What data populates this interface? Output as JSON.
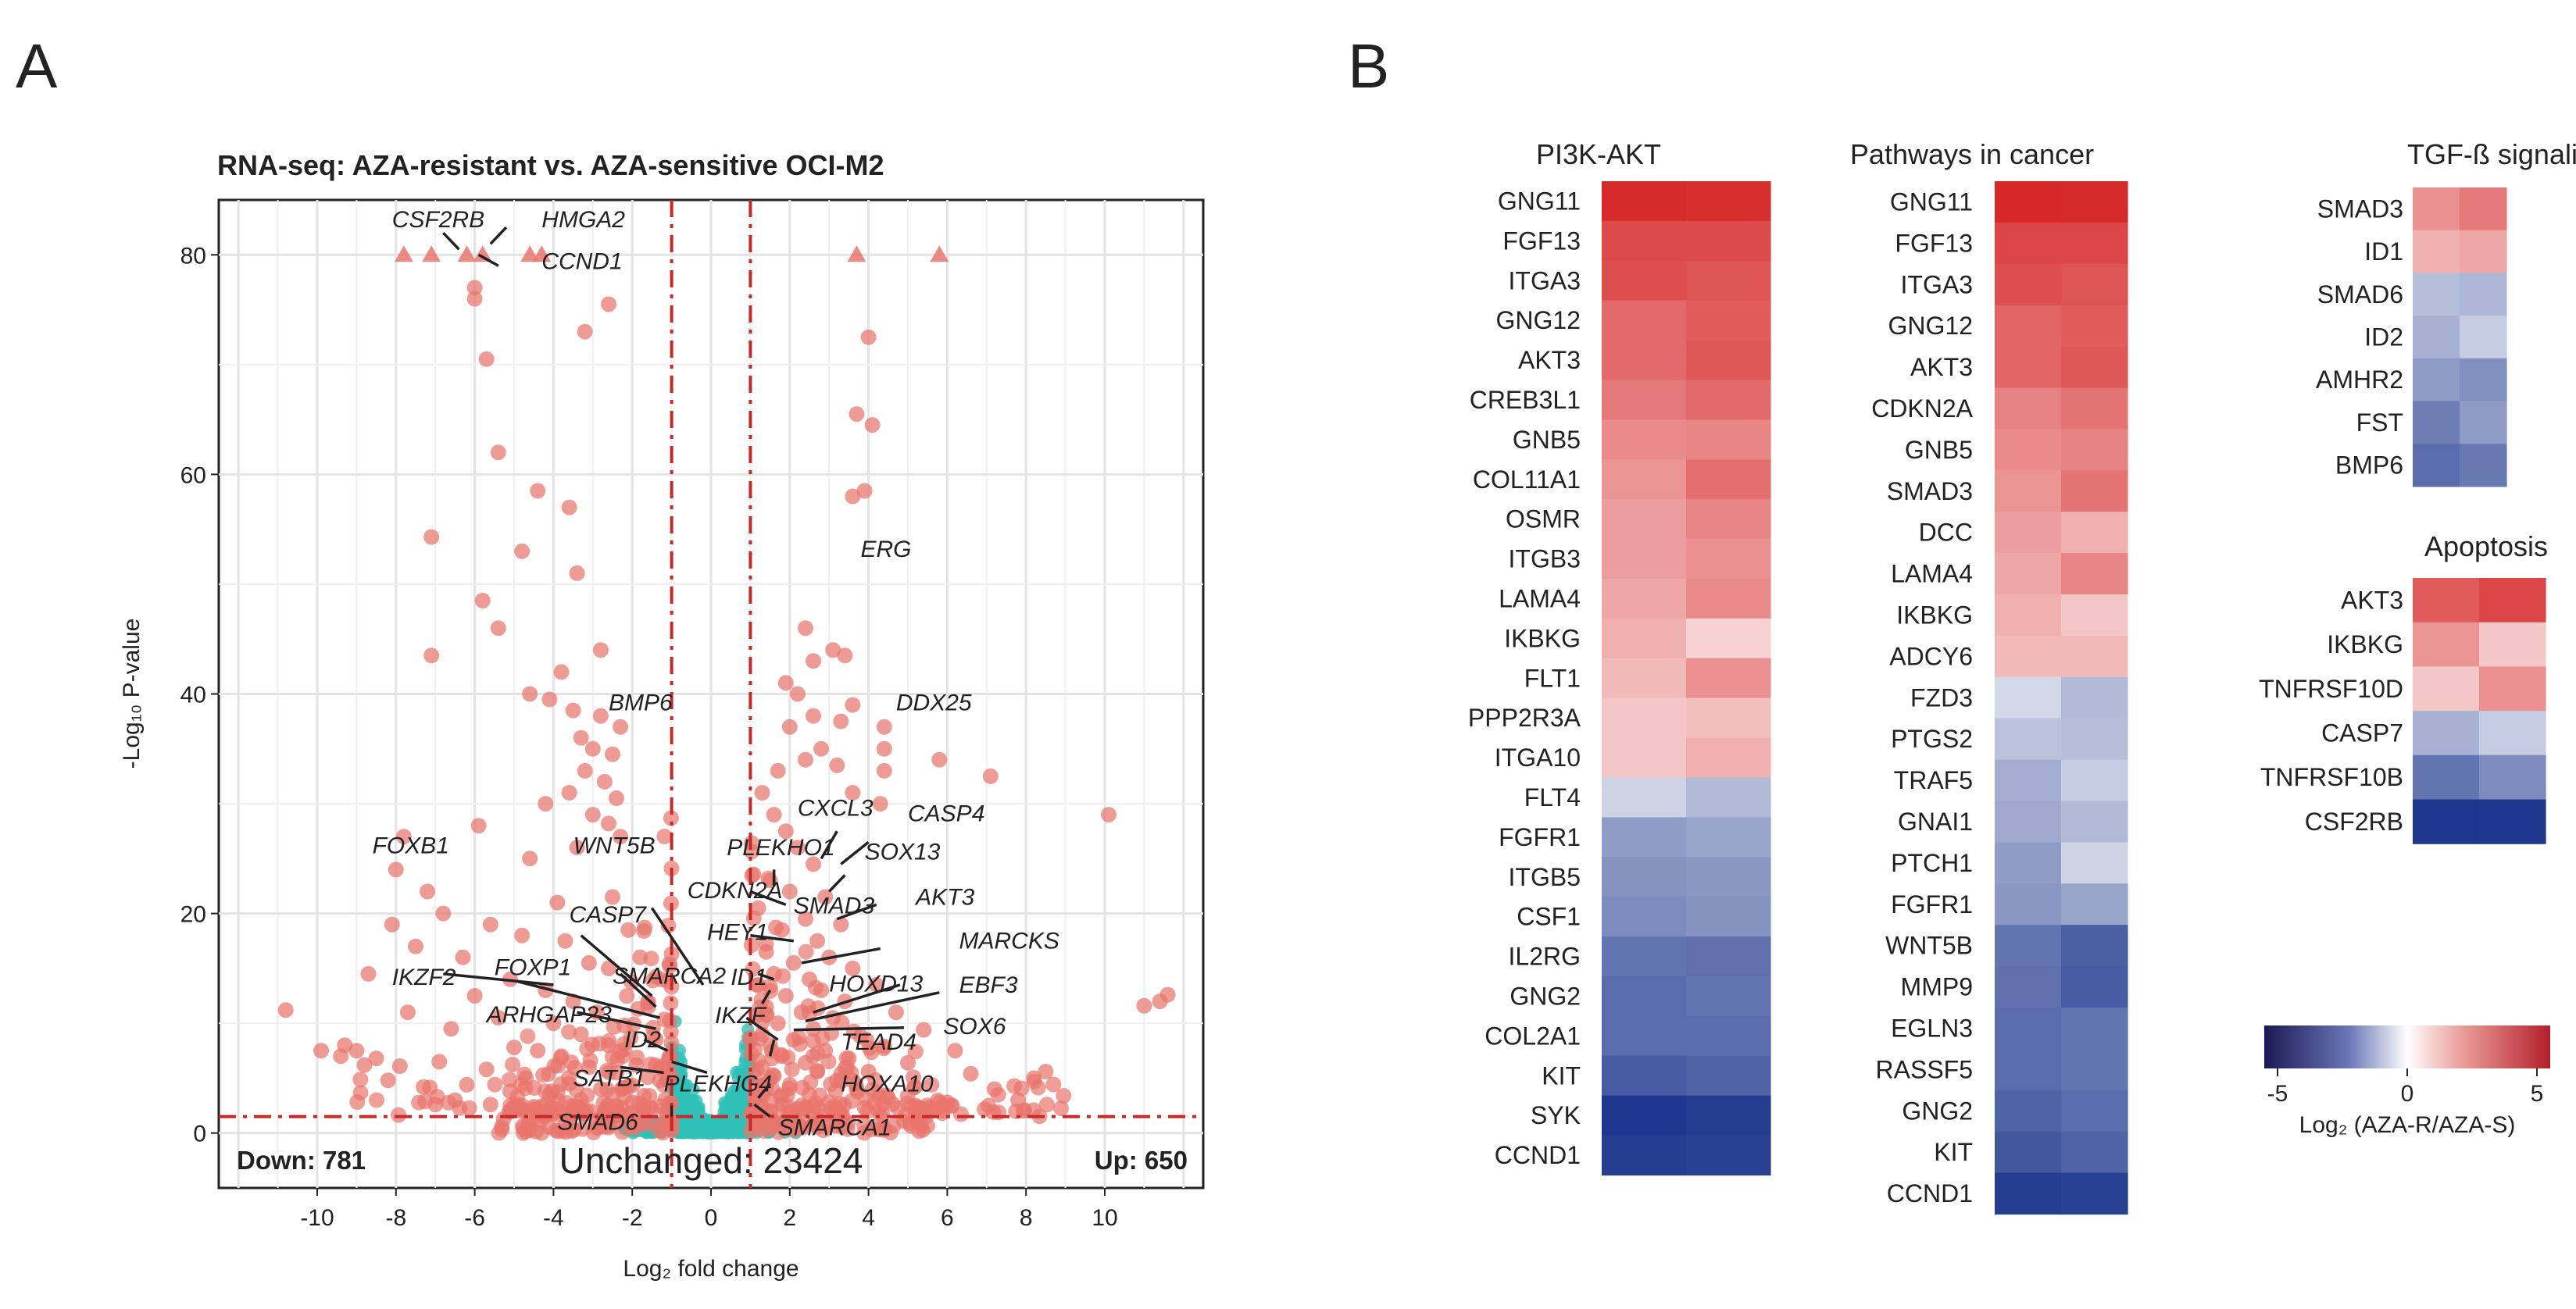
{
  "panel_labels": [
    "A",
    "B"
  ],
  "colors": {
    "up_down": "#e8756c",
    "unchanged": "#2ec1b8",
    "cutoff_line": "#c62828",
    "down_text": "#2747a0",
    "up_text": "#c0392b",
    "heat_low": "#1c1a55",
    "heat_mid": "#ffffff",
    "heat_high": "#b3202a"
  },
  "chart_data": [
    {
      "type": "scatter",
      "subtype": "volcano",
      "title": "RNA-seq: AZA-resistant vs. AZA-sensitive OCI-M2",
      "xlabel": "Log₂ fold change",
      "ylabel": "-Log₁₀ P-value",
      "xlim": [
        -12.5,
        12.5
      ],
      "ylim": [
        -5,
        85
      ],
      "xticks": [
        -10,
        -8,
        -6,
        -4,
        -2,
        0,
        2,
        4,
        6,
        8,
        10
      ],
      "yticks": [
        0,
        20,
        40,
        60,
        80
      ],
      "cutoffs": {
        "fold_change": [
          -1,
          1
        ],
        "pvalue": 1.5
      },
      "counts": {
        "down": "Down: 781",
        "unchanged": "Unchanged: 23424",
        "up": "Up: 650"
      },
      "capped_points": [
        [
          -7.8,
          80
        ],
        [
          -7.1,
          80
        ],
        [
          -6.2,
          80
        ],
        [
          -5.8,
          80
        ],
        [
          -4.6,
          80
        ],
        [
          -4.3,
          80
        ],
        [
          3.7,
          80
        ],
        [
          5.8,
          80
        ]
      ],
      "points": [
        [
          -6.0,
          77
        ],
        [
          -6.0,
          76
        ],
        [
          -2.6,
          75.5
        ],
        [
          -3.2,
          73
        ],
        [
          -5.7,
          70.5
        ],
        [
          -5.4,
          62
        ],
        [
          -4.4,
          58.5
        ],
        [
          -3.6,
          57
        ],
        [
          -7.1,
          54.3
        ],
        [
          -4.8,
          53
        ],
        [
          -3.4,
          51
        ],
        [
          -5.8,
          48.5
        ],
        [
          -5.4,
          46
        ],
        [
          -7.1,
          43.5
        ],
        [
          -2.8,
          44
        ],
        [
          -3.8,
          42
        ],
        [
          -4.6,
          40
        ],
        [
          -4.1,
          39.5
        ],
        [
          -3.5,
          38.5
        ],
        [
          -2.8,
          38
        ],
        [
          -2.3,
          37
        ],
        [
          -3.3,
          36
        ],
        [
          -3.0,
          35
        ],
        [
          -2.5,
          34.5
        ],
        [
          -3.2,
          33
        ],
        [
          -2.7,
          32
        ],
        [
          -3.6,
          31
        ],
        [
          -2.4,
          30.5
        ],
        [
          -4.2,
          30
        ],
        [
          -3.0,
          29
        ],
        [
          -2.6,
          28.2
        ],
        [
          -5.9,
          28
        ],
        [
          -2.3,
          27
        ],
        [
          -3.4,
          26
        ],
        [
          -4.6,
          25
        ],
        [
          -7.8,
          27
        ],
        [
          -8.0,
          24
        ],
        [
          -7.2,
          22
        ],
        [
          -3.9,
          21
        ],
        [
          -2.5,
          21.5
        ],
        [
          -6.8,
          20
        ],
        [
          -5.6,
          19
        ],
        [
          -8.1,
          19
        ],
        [
          -4.8,
          18
        ],
        [
          -2.1,
          18.5
        ],
        [
          -3.7,
          17.5
        ],
        [
          -7.5,
          17
        ],
        [
          -1.8,
          16
        ],
        [
          -6.3,
          16
        ],
        [
          -3.1,
          15.5
        ],
        [
          -8.7,
          14.5
        ],
        [
          -2.6,
          15
        ],
        [
          -5.1,
          14
        ],
        [
          -4.2,
          13
        ],
        [
          -6.0,
          12.5
        ],
        [
          -3.5,
          12
        ],
        [
          -1.6,
          11.5
        ],
        [
          -2.9,
          11
        ],
        [
          -7.7,
          11
        ],
        [
          -5.4,
          10.5
        ],
        [
          -4.0,
          10
        ],
        [
          -2.2,
          9.8
        ],
        [
          -6.6,
          9.5
        ],
        [
          -3.3,
          9
        ],
        [
          -1.4,
          8.5
        ],
        [
          -9.3,
          8
        ],
        [
          -2.6,
          8
        ],
        [
          -5.0,
          7.8
        ],
        [
          -4.4,
          7.5
        ],
        [
          -3.8,
          7
        ],
        [
          -9.0,
          7.5
        ],
        [
          -8.5,
          6.8
        ],
        [
          -6.9,
          6.5
        ],
        [
          -1.9,
          6.2
        ],
        [
          -3.1,
          6
        ],
        [
          -7.9,
          6.1
        ],
        [
          -5.7,
          5.8
        ],
        [
          -2.4,
          5.5
        ],
        [
          -4.7,
          5
        ],
        [
          -1.3,
          4.8
        ],
        [
          -3.6,
          4.5
        ],
        [
          -6.2,
          4.4
        ],
        [
          -2.8,
          4
        ],
        [
          -8.2,
          4.8
        ],
        [
          -5.1,
          3.8
        ],
        [
          -4.1,
          3.5
        ],
        [
          -1.7,
          3.4
        ],
        [
          -7.3,
          4.2
        ],
        [
          -3.3,
          3
        ],
        [
          -2.0,
          2.8
        ],
        [
          -6.5,
          3
        ],
        [
          -5.6,
          2.6
        ],
        [
          -4.5,
          2.4
        ],
        [
          -1.5,
          2.2
        ],
        [
          -3.9,
          2.2
        ],
        [
          -2.7,
          2
        ],
        [
          -7.0,
          2.6
        ],
        [
          -10.8,
          11.2
        ],
        [
          -9.9,
          7.5
        ],
        [
          -9.4,
          7
        ],
        [
          -8.8,
          6.2
        ],
        [
          1.3,
          31
        ],
        [
          1.6,
          29
        ],
        [
          1.9,
          27.5
        ],
        [
          2.2,
          26
        ],
        [
          2.6,
          24.5
        ],
        [
          1.5,
          23
        ],
        [
          2.0,
          22
        ],
        [
          2.9,
          21.5
        ],
        [
          1.2,
          20.5
        ],
        [
          2.4,
          19.5
        ],
        [
          3.3,
          19
        ],
        [
          1.8,
          18.5
        ],
        [
          2.7,
          17.5
        ],
        [
          1.4,
          16.5
        ],
        [
          3.0,
          16
        ],
        [
          2.1,
          15.5
        ],
        [
          3.6,
          15
        ],
        [
          1.6,
          14.5
        ],
        [
          2.5,
          14
        ],
        [
          1.2,
          13.5
        ],
        [
          4.2,
          13.5
        ],
        [
          2.8,
          13
        ],
        [
          1.9,
          12.5
        ],
        [
          3.4,
          12
        ],
        [
          1.4,
          11.5
        ],
        [
          2.3,
          11
        ],
        [
          4.7,
          11
        ],
        [
          3.1,
          10.5
        ],
        [
          1.7,
          10
        ],
        [
          2.6,
          9.5
        ],
        [
          5.4,
          9.4
        ],
        [
          1.3,
          9
        ],
        [
          3.8,
          8.8
        ],
        [
          2.1,
          8.5
        ],
        [
          1.5,
          8
        ],
        [
          4.4,
          7.9
        ],
        [
          2.9,
          7.5
        ],
        [
          6.2,
          7.5
        ],
        [
          1.8,
          7
        ],
        [
          3.5,
          6.8
        ],
        [
          2.4,
          6.4
        ],
        [
          5.0,
          6.4
        ],
        [
          1.3,
          6
        ],
        [
          2.7,
          5.6
        ],
        [
          4.0,
          5.6
        ],
        [
          1.6,
          5.2
        ],
        [
          6.6,
          5.4
        ],
        [
          3.2,
          4.8
        ],
        [
          2.0,
          4.4
        ],
        [
          5.6,
          4.4
        ],
        [
          1.4,
          4
        ],
        [
          3.7,
          4
        ],
        [
          2.5,
          3.5
        ],
        [
          7.2,
          4
        ],
        [
          1.2,
          3.2
        ],
        [
          4.5,
          3.2
        ],
        [
          3.0,
          2.8
        ],
        [
          1.8,
          2.6
        ],
        [
          6.0,
          2.8
        ],
        [
          2.2,
          2.2
        ],
        [
          5.2,
          2.5
        ],
        [
          3.9,
          2.3
        ],
        [
          1.5,
          2
        ],
        [
          7.8,
          3
        ],
        [
          8.5,
          5.6
        ],
        [
          8.2,
          5
        ],
        [
          4.0,
          72.5
        ],
        [
          3.7,
          65.5
        ],
        [
          4.1,
          64.5
        ],
        [
          3.6,
          58
        ],
        [
          3.9,
          58.5
        ],
        [
          4.4,
          37
        ],
        [
          4.4,
          35
        ],
        [
          4.4,
          33
        ],
        [
          3.6,
          31
        ],
        [
          4.3,
          30
        ],
        [
          5.8,
          34
        ],
        [
          7.1,
          32.5
        ],
        [
          10.1,
          29
        ],
        [
          2.4,
          46
        ],
        [
          2.6,
          43
        ],
        [
          3.1,
          44
        ],
        [
          3.4,
          43.5
        ],
        [
          2.2,
          40
        ],
        [
          2.6,
          38
        ],
        [
          3.3,
          37.5
        ],
        [
          2.8,
          35
        ],
        [
          2.4,
          34
        ],
        [
          3.2,
          33.5
        ],
        [
          1.7,
          33
        ],
        [
          11.6,
          12.6
        ],
        [
          11.4,
          12
        ],
        [
          11.0,
          11.6
        ],
        [
          2.0,
          37
        ],
        [
          3.6,
          39
        ],
        [
          1.9,
          41
        ]
      ],
      "unchanged_region": {
        "x": [
          -1,
          1
        ],
        "y": [
          0,
          13
        ]
      },
      "labels": [
        {
          "text": "CSF2RB",
          "x": -8.1,
          "y": 82.5
        },
        {
          "text": "HMGA2",
          "x": -4.3,
          "y": 82.5
        },
        {
          "text": "CCND1",
          "x": -4.3,
          "y": 78.7
        },
        {
          "text": "ERG",
          "x": 3.8,
          "y": 52.5
        },
        {
          "text": "BMP6",
          "x": -2.6,
          "y": 38.5
        },
        {
          "text": "DDX25",
          "x": 4.7,
          "y": 38.5
        },
        {
          "text": "FOXB1",
          "x": -8.6,
          "y": 25.5
        },
        {
          "text": "WNT5B",
          "x": -3.5,
          "y": 25.5
        },
        {
          "text": "PLEKHO1",
          "x": 0.4,
          "y": 25.3
        },
        {
          "text": "CXCL3",
          "x": 2.2,
          "y": 28.9
        },
        {
          "text": "CASP4",
          "x": 5.0,
          "y": 28.4
        },
        {
          "text": "SOX13",
          "x": 3.9,
          "y": 24.9
        },
        {
          "text": "CDKN2A",
          "x": -0.6,
          "y": 21.4
        },
        {
          "text": "AKT3",
          "x": 5.2,
          "y": 20.8
        },
        {
          "text": "SMAD3",
          "x": 2.1,
          "y": 20.0
        },
        {
          "text": "CASP7",
          "x": -3.6,
          "y": 19.2
        },
        {
          "text": "HEY1",
          "x": -0.1,
          "y": 17.6
        },
        {
          "text": "MARCKS",
          "x": 6.3,
          "y": 16.8
        },
        {
          "text": "IKZF2",
          "x": -8.1,
          "y": 13.5
        },
        {
          "text": "FOXP1",
          "x": -5.5,
          "y": 14.4
        },
        {
          "text": "SMARCA2",
          "x": -2.5,
          "y": 13.6
        },
        {
          "text": "ID1",
          "x": 0.5,
          "y": 13.5
        },
        {
          "text": "HOXD13",
          "x": 3.0,
          "y": 12.9
        },
        {
          "text": "EBF3",
          "x": 6.3,
          "y": 12.8
        },
        {
          "text": "ARHGAP23",
          "x": -5.7,
          "y": 10.1
        },
        {
          "text": "IKZF",
          "x": 0.1,
          "y": 10.0
        },
        {
          "text": "SOX6",
          "x": 5.9,
          "y": 9.0
        },
        {
          "text": "ID2",
          "x": -2.2,
          "y": 7.8
        },
        {
          "text": "TEAD4",
          "x": 3.3,
          "y": 7.6
        },
        {
          "text": "SATB1",
          "x": -3.5,
          "y": 4.3
        },
        {
          "text": "PLEKHG4",
          "x": -1.2,
          "y": 3.8
        },
        {
          "text": "HOXA10",
          "x": 3.3,
          "y": 3.8
        },
        {
          "text": "SMAD6",
          "x": -3.9,
          "y": 0.3
        },
        {
          "text": "SMARCA1",
          "x": 1.7,
          "y": -0.2
        }
      ]
    },
    {
      "type": "heatmap",
      "title": "PI3K-AKT",
      "rows": [
        "GNG11",
        "FGF13",
        "ITGA3",
        "GNG12",
        "AKT3",
        "CREB3L1",
        "GNB5",
        "COL11A1",
        "OSMR",
        "ITGB3",
        "LAMA4",
        "IKBKG",
        "FLT1",
        "PPP2R3A",
        "ITGA10",
        "FLT4",
        "FGFR1",
        "ITGB5",
        "CSF1",
        "IL2RG",
        "GNG2",
        "COL2A1",
        "KIT",
        "SYK",
        "CCND1"
      ],
      "values": [
        [
          4.6,
          4.5
        ],
        [
          3.9,
          3.9
        ],
        [
          3.8,
          3.7
        ],
        [
          3.2,
          3.5
        ],
        [
          3.2,
          3.6
        ],
        [
          2.9,
          3.2
        ],
        [
          2.5,
          2.6
        ],
        [
          2.3,
          3.1
        ],
        [
          2.1,
          2.6
        ],
        [
          2.1,
          2.4
        ],
        [
          1.9,
          2.5
        ],
        [
          1.7,
          1.0
        ],
        [
          1.5,
          2.4
        ],
        [
          1.2,
          1.4
        ],
        [
          1.2,
          1.7
        ],
        [
          -1.0,
          -1.6
        ],
        [
          -2.3,
          -2.1
        ],
        [
          -2.5,
          -2.4
        ],
        [
          -2.7,
          -2.5
        ],
        [
          -3.2,
          -3.3
        ],
        [
          -3.4,
          -3.2
        ],
        [
          -3.4,
          -3.4
        ],
        [
          -3.8,
          -3.6
        ],
        [
          -4.6,
          -4.5
        ],
        [
          -4.5,
          -4.4
        ]
      ]
    },
    {
      "type": "heatmap",
      "title": "Pathways in cancer",
      "rows": [
        "GNG11",
        "FGF13",
        "ITGA3",
        "GNG12",
        "AKT3",
        "CDKN2A",
        "GNB5",
        "SMAD3",
        "DCC",
        "LAMA4",
        "IKBKG",
        "ADCY6",
        "FZD3",
        "PTGS2",
        "TRAF5",
        "GNAI1",
        "PTCH1",
        "FGFR1",
        "WNT5B",
        "MMP9",
        "EGLN3",
        "RASSF5",
        "GNG2",
        "KIT",
        "CCND1"
      ],
      "values": [
        [
          4.7,
          4.6
        ],
        [
          4.0,
          4.0
        ],
        [
          3.8,
          3.7
        ],
        [
          3.3,
          3.5
        ],
        [
          3.3,
          3.6
        ],
        [
          2.7,
          3.0
        ],
        [
          2.5,
          2.7
        ],
        [
          2.3,
          3.0
        ],
        [
          2.1,
          1.7
        ],
        [
          1.9,
          2.6
        ],
        [
          1.7,
          1.2
        ],
        [
          1.5,
          1.5
        ],
        [
          -0.9,
          -1.6
        ],
        [
          -1.4,
          -1.5
        ],
        [
          -1.9,
          -1.2
        ],
        [
          -2.0,
          -1.6
        ],
        [
          -2.3,
          -1.0
        ],
        [
          -2.4,
          -2.1
        ],
        [
          -3.2,
          -3.7
        ],
        [
          -3.3,
          -3.8
        ],
        [
          -3.4,
          -3.2
        ],
        [
          -3.4,
          -3.2
        ],
        [
          -3.6,
          -3.4
        ],
        [
          -3.9,
          -3.6
        ],
        [
          -4.5,
          -4.4
        ]
      ]
    },
    {
      "type": "heatmap",
      "title": "TGF-ß signaling",
      "rows": [
        "SMAD3",
        "ID1",
        "SMAD6",
        "ID2",
        "AMHR2",
        "FST",
        "BMP6"
      ],
      "values": [
        [
          2.4,
          2.9
        ],
        [
          1.7,
          1.9
        ],
        [
          -1.5,
          -1.7
        ],
        [
          -1.8,
          -1.2
        ],
        [
          -2.3,
          -2.6
        ],
        [
          -3.0,
          -2.3
        ],
        [
          -3.4,
          -3.1
        ]
      ]
    },
    {
      "type": "heatmap",
      "title": "Apoptosis",
      "rows": [
        "AKT3",
        "IKBKG",
        "TNFRSF10D",
        "CASP7",
        "TNFRSF10B",
        "CSF2RB"
      ],
      "values": [
        [
          3.5,
          4.0
        ],
        [
          2.3,
          1.2
        ],
        [
          1.2,
          2.4
        ],
        [
          -1.8,
          -1.2
        ],
        [
          -3.2,
          -2.7
        ],
        [
          -4.7,
          -4.6
        ]
      ]
    },
    {
      "type": "colorbar",
      "range": [
        -5,
        5
      ],
      "ticks": [
        "-5",
        "0",
        "5"
      ],
      "label": "Log₂ (AZA-R/AZA-S)"
    }
  ]
}
